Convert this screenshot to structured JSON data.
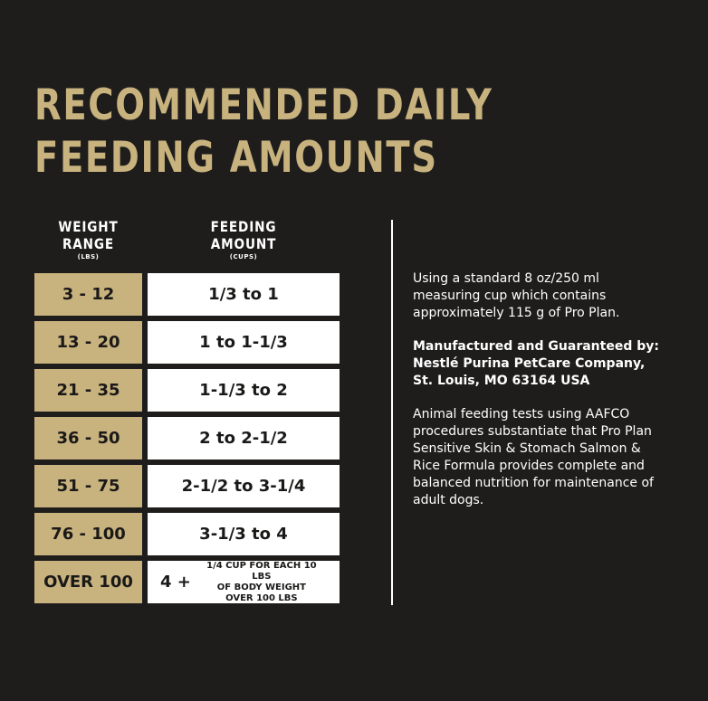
{
  "title": {
    "line1": "RECOMMENDED DAILY",
    "line2": "FEEDING AMOUNTS"
  },
  "table": {
    "weight_header": {
      "line1": "WEIGHT",
      "line2": "RANGE",
      "unit": "(LBS)"
    },
    "amount_header": {
      "line1": "FEEDING",
      "line2": "AMOUNT",
      "unit": "(CUPS)"
    },
    "rows": [
      {
        "weight": "3 - 12",
        "amount": "1/3 to 1"
      },
      {
        "weight": "13 - 20",
        "amount": "1 to 1-1/3"
      },
      {
        "weight": "21 - 35",
        "amount": "1-1/3 to 2"
      },
      {
        "weight": "36 - 50",
        "amount": "2 to 2-1/2"
      },
      {
        "weight": "51 - 75",
        "amount": "2-1/2 to 3-1/4"
      },
      {
        "weight": "76 - 100",
        "amount": "3-1/3 to 4"
      }
    ],
    "last_row": {
      "weight": "OVER 100",
      "amount_main": "4 +",
      "note_line1": "1/4 CUP FOR EACH 10 LBS",
      "note_line2": "OF BODY WEIGHT",
      "note_line3": "OVER 100 LBS"
    }
  },
  "info": {
    "measure": [
      "Using a standard 8 oz/250 ml",
      "measuring cup which contains",
      "approximately 115 g of Pro Plan."
    ],
    "manufacturer": [
      "Manufactured and Guaranteed by:",
      "Nestlé Purina PetCare Company,",
      "St. Louis, MO 63164 USA"
    ],
    "aafco": [
      "Animal feeding tests using AAFCO",
      "procedures substantiate that Pro Plan",
      "Sensitive Skin & Stomach Salmon &",
      "Rice Formula provides complete and",
      "balanced nutrition for maintenance of",
      "adult dogs."
    ]
  },
  "colors": {
    "background": "#1e1d1c",
    "gold": "#c8b27e",
    "white": "#ffffff"
  }
}
